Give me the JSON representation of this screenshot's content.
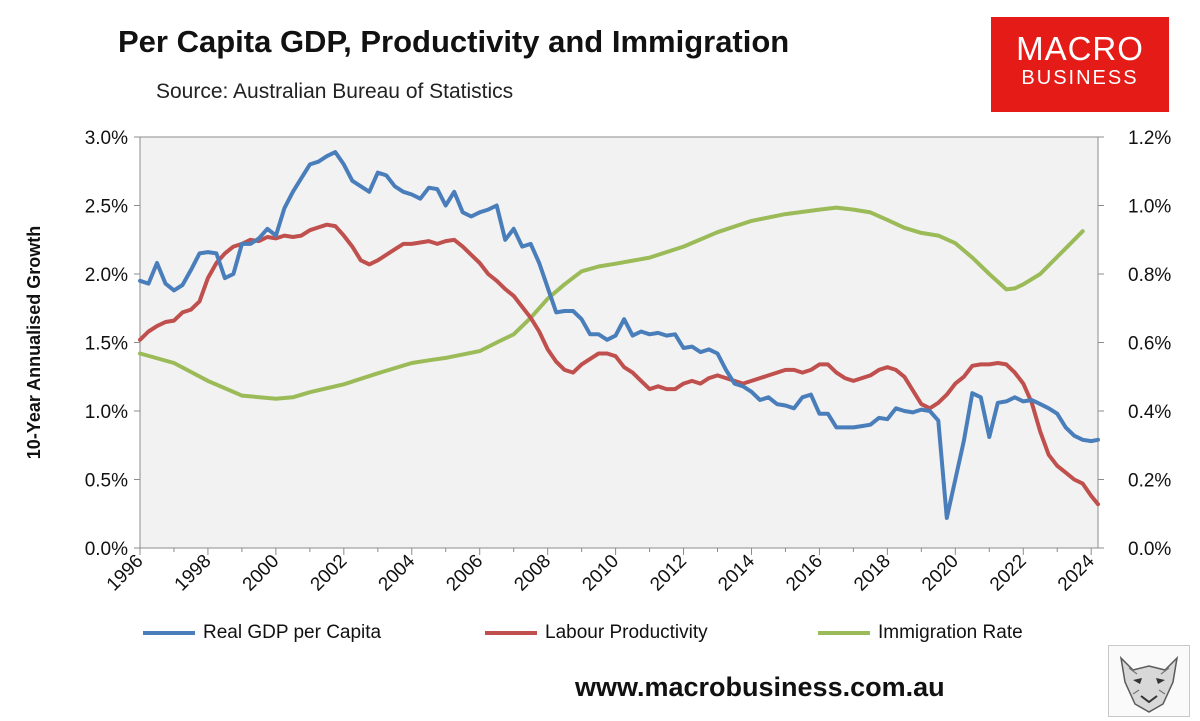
{
  "header": {
    "title": "Per Capita GDP, Productivity and Immigration",
    "subtitle": "Source: Australian Bureau of Statistics"
  },
  "brand": {
    "line1": "MACRO",
    "line2": "BUSINESS",
    "color": "#e41b17"
  },
  "footer": {
    "website": "www.macrobusiness.com.au",
    "logo_icon": "wolf-icon"
  },
  "chart_data": {
    "type": "line",
    "title": "Per Capita GDP, Productivity and Immigration",
    "subtitle": "Source: Australian Bureau of Statistics",
    "xlabel": "",
    "ylabel": "10-Year Annualised Growth",
    "xlim": [
      1996,
      2024.2
    ],
    "ylim": [
      0,
      3.0
    ],
    "y2lim": [
      0,
      1.2
    ],
    "y_ticks": [
      "0.0%",
      "0.5%",
      "1.0%",
      "1.5%",
      "2.0%",
      "2.5%",
      "3.0%"
    ],
    "y2_ticks": [
      "0.0%",
      "0.2%",
      "0.4%",
      "0.6%",
      "0.8%",
      "1.0%",
      "1.2%"
    ],
    "x_ticks": [
      "1996",
      "1998",
      "2000",
      "2002",
      "2004",
      "2006",
      "2008",
      "2010",
      "2012",
      "2014",
      "2016",
      "2018",
      "2020",
      "2022",
      "2024"
    ],
    "grid": false,
    "legend_position": "bottom",
    "series": [
      {
        "name": "Real GDP per Capita",
        "axis": "left",
        "color": "#4a7ebb",
        "points": [
          [
            1996.0,
            1.95
          ],
          [
            1996.25,
            1.93
          ],
          [
            1996.5,
            2.08
          ],
          [
            1996.75,
            1.93
          ],
          [
            1997.0,
            1.88
          ],
          [
            1997.25,
            1.92
          ],
          [
            1997.5,
            2.03
          ],
          [
            1997.75,
            2.15
          ],
          [
            1998.0,
            2.16
          ],
          [
            1998.25,
            2.15
          ],
          [
            1998.5,
            1.97
          ],
          [
            1998.75,
            2.0
          ],
          [
            1999.0,
            2.22
          ],
          [
            1999.25,
            2.22
          ],
          [
            1999.5,
            2.26
          ],
          [
            1999.75,
            2.33
          ],
          [
            2000.0,
            2.28
          ],
          [
            2000.25,
            2.48
          ],
          [
            2000.5,
            2.6
          ],
          [
            2000.75,
            2.7
          ],
          [
            2001.0,
            2.8
          ],
          [
            2001.25,
            2.82
          ],
          [
            2001.5,
            2.86
          ],
          [
            2001.75,
            2.89
          ],
          [
            2002.0,
            2.8
          ],
          [
            2002.25,
            2.68
          ],
          [
            2002.5,
            2.64
          ],
          [
            2002.75,
            2.6
          ],
          [
            2003.0,
            2.74
          ],
          [
            2003.25,
            2.72
          ],
          [
            2003.5,
            2.64
          ],
          [
            2003.75,
            2.6
          ],
          [
            2004.0,
            2.58
          ],
          [
            2004.25,
            2.55
          ],
          [
            2004.5,
            2.63
          ],
          [
            2004.75,
            2.62
          ],
          [
            2005.0,
            2.5
          ],
          [
            2005.25,
            2.6
          ],
          [
            2005.5,
            2.45
          ],
          [
            2005.75,
            2.42
          ],
          [
            2006.0,
            2.45
          ],
          [
            2006.25,
            2.47
          ],
          [
            2006.5,
            2.5
          ],
          [
            2006.75,
            2.25
          ],
          [
            2007.0,
            2.33
          ],
          [
            2007.25,
            2.2
          ],
          [
            2007.5,
            2.22
          ],
          [
            2007.75,
            2.08
          ],
          [
            2008.0,
            1.9
          ],
          [
            2008.25,
            1.72
          ],
          [
            2008.5,
            1.73
          ],
          [
            2008.75,
            1.73
          ],
          [
            2009.0,
            1.67
          ],
          [
            2009.25,
            1.56
          ],
          [
            2009.5,
            1.56
          ],
          [
            2009.75,
            1.52
          ],
          [
            2010.0,
            1.55
          ],
          [
            2010.25,
            1.67
          ],
          [
            2010.5,
            1.55
          ],
          [
            2010.75,
            1.58
          ],
          [
            2011.0,
            1.56
          ],
          [
            2011.25,
            1.57
          ],
          [
            2011.5,
            1.55
          ],
          [
            2011.75,
            1.56
          ],
          [
            2012.0,
            1.46
          ],
          [
            2012.25,
            1.47
          ],
          [
            2012.5,
            1.43
          ],
          [
            2012.75,
            1.45
          ],
          [
            2013.0,
            1.42
          ],
          [
            2013.25,
            1.3
          ],
          [
            2013.5,
            1.2
          ],
          [
            2013.75,
            1.18
          ],
          [
            2014.0,
            1.14
          ],
          [
            2014.25,
            1.08
          ],
          [
            2014.5,
            1.1
          ],
          [
            2014.75,
            1.05
          ],
          [
            2015.0,
            1.04
          ],
          [
            2015.25,
            1.02
          ],
          [
            2015.5,
            1.1
          ],
          [
            2015.75,
            1.12
          ],
          [
            2016.0,
            0.98
          ],
          [
            2016.25,
            0.98
          ],
          [
            2016.5,
            0.88
          ],
          [
            2016.75,
            0.88
          ],
          [
            2017.0,
            0.88
          ],
          [
            2017.25,
            0.89
          ],
          [
            2017.5,
            0.9
          ],
          [
            2017.75,
            0.95
          ],
          [
            2018.0,
            0.94
          ],
          [
            2018.25,
            1.02
          ],
          [
            2018.5,
            1.0
          ],
          [
            2018.75,
            0.99
          ],
          [
            2019.0,
            1.01
          ],
          [
            2019.25,
            1.0
          ],
          [
            2019.5,
            0.93
          ],
          [
            2019.75,
            0.22
          ],
          [
            2020.0,
            0.5
          ],
          [
            2020.25,
            0.78
          ],
          [
            2020.5,
            1.13
          ],
          [
            2020.75,
            1.1
          ],
          [
            2021.0,
            0.81
          ],
          [
            2021.25,
            1.06
          ],
          [
            2021.5,
            1.07
          ],
          [
            2021.75,
            1.1
          ],
          [
            2022.0,
            1.07
          ],
          [
            2022.25,
            1.08
          ],
          [
            2022.5,
            1.05
          ],
          [
            2022.75,
            1.02
          ],
          [
            2023.0,
            0.98
          ],
          [
            2023.25,
            0.88
          ],
          [
            2023.5,
            0.82
          ],
          [
            2023.75,
            0.79
          ],
          [
            2024.0,
            0.78
          ],
          [
            2024.2,
            0.79
          ]
        ]
      },
      {
        "name": "Labour Productivity",
        "axis": "left",
        "color": "#c0504d",
        "points": [
          [
            1996.0,
            1.52
          ],
          [
            1996.25,
            1.58
          ],
          [
            1996.5,
            1.62
          ],
          [
            1996.75,
            1.65
          ],
          [
            1997.0,
            1.66
          ],
          [
            1997.25,
            1.72
          ],
          [
            1997.5,
            1.74
          ],
          [
            1997.75,
            1.8
          ],
          [
            1998.0,
            1.97
          ],
          [
            1998.25,
            2.08
          ],
          [
            1998.5,
            2.15
          ],
          [
            1998.75,
            2.2
          ],
          [
            1999.0,
            2.22
          ],
          [
            1999.25,
            2.25
          ],
          [
            1999.5,
            2.24
          ],
          [
            1999.75,
            2.27
          ],
          [
            2000.0,
            2.26
          ],
          [
            2000.25,
            2.28
          ],
          [
            2000.5,
            2.27
          ],
          [
            2000.75,
            2.28
          ],
          [
            2001.0,
            2.32
          ],
          [
            2001.25,
            2.34
          ],
          [
            2001.5,
            2.36
          ],
          [
            2001.75,
            2.35
          ],
          [
            2002.0,
            2.28
          ],
          [
            2002.25,
            2.2
          ],
          [
            2002.5,
            2.1
          ],
          [
            2002.75,
            2.07
          ],
          [
            2003.0,
            2.1
          ],
          [
            2003.25,
            2.14
          ],
          [
            2003.5,
            2.18
          ],
          [
            2003.75,
            2.22
          ],
          [
            2004.0,
            2.22
          ],
          [
            2004.25,
            2.23
          ],
          [
            2004.5,
            2.24
          ],
          [
            2004.75,
            2.22
          ],
          [
            2005.0,
            2.24
          ],
          [
            2005.25,
            2.25
          ],
          [
            2005.5,
            2.2
          ],
          [
            2005.75,
            2.14
          ],
          [
            2006.0,
            2.08
          ],
          [
            2006.25,
            2.0
          ],
          [
            2006.5,
            1.95
          ],
          [
            2006.75,
            1.89
          ],
          [
            2007.0,
            1.84
          ],
          [
            2007.25,
            1.76
          ],
          [
            2007.5,
            1.68
          ],
          [
            2007.75,
            1.58
          ],
          [
            2008.0,
            1.45
          ],
          [
            2008.25,
            1.36
          ],
          [
            2008.5,
            1.3
          ],
          [
            2008.75,
            1.28
          ],
          [
            2009.0,
            1.34
          ],
          [
            2009.25,
            1.38
          ],
          [
            2009.5,
            1.42
          ],
          [
            2009.75,
            1.42
          ],
          [
            2010.0,
            1.4
          ],
          [
            2010.25,
            1.32
          ],
          [
            2010.5,
            1.28
          ],
          [
            2010.75,
            1.22
          ],
          [
            2011.0,
            1.16
          ],
          [
            2011.25,
            1.18
          ],
          [
            2011.5,
            1.16
          ],
          [
            2011.75,
            1.16
          ],
          [
            2012.0,
            1.2
          ],
          [
            2012.25,
            1.22
          ],
          [
            2012.5,
            1.2
          ],
          [
            2012.75,
            1.24
          ],
          [
            2013.0,
            1.26
          ],
          [
            2013.25,
            1.24
          ],
          [
            2013.5,
            1.22
          ],
          [
            2013.75,
            1.2
          ],
          [
            2014.0,
            1.22
          ],
          [
            2014.25,
            1.24
          ],
          [
            2014.5,
            1.26
          ],
          [
            2014.75,
            1.28
          ],
          [
            2015.0,
            1.3
          ],
          [
            2015.25,
            1.3
          ],
          [
            2015.5,
            1.28
          ],
          [
            2015.75,
            1.3
          ],
          [
            2016.0,
            1.34
          ],
          [
            2016.25,
            1.34
          ],
          [
            2016.5,
            1.28
          ],
          [
            2016.75,
            1.24
          ],
          [
            2017.0,
            1.22
          ],
          [
            2017.25,
            1.24
          ],
          [
            2017.5,
            1.26
          ],
          [
            2017.75,
            1.3
          ],
          [
            2018.0,
            1.32
          ],
          [
            2018.25,
            1.3
          ],
          [
            2018.5,
            1.25
          ],
          [
            2018.75,
            1.15
          ],
          [
            2019.0,
            1.05
          ],
          [
            2019.25,
            1.02
          ],
          [
            2019.5,
            1.06
          ],
          [
            2019.75,
            1.12
          ],
          [
            2020.0,
            1.2
          ],
          [
            2020.25,
            1.25
          ],
          [
            2020.5,
            1.33
          ],
          [
            2020.75,
            1.34
          ],
          [
            2021.0,
            1.34
          ],
          [
            2021.25,
            1.35
          ],
          [
            2021.5,
            1.34
          ],
          [
            2021.75,
            1.28
          ],
          [
            2022.0,
            1.2
          ],
          [
            2022.25,
            1.06
          ],
          [
            2022.5,
            0.85
          ],
          [
            2022.75,
            0.68
          ],
          [
            2023.0,
            0.6
          ],
          [
            2023.25,
            0.55
          ],
          [
            2023.5,
            0.5
          ],
          [
            2023.75,
            0.47
          ],
          [
            2024.0,
            0.38
          ],
          [
            2024.2,
            0.32
          ]
        ]
      },
      {
        "name": "Immigration Rate",
        "axis": "right",
        "color": "#9bbb59",
        "points": [
          [
            1996.0,
            0.568
          ],
          [
            1997.0,
            0.54
          ],
          [
            1998.0,
            0.488
          ],
          [
            1999.0,
            0.445
          ],
          [
            2000.0,
            0.436
          ],
          [
            2000.5,
            0.44
          ],
          [
            2001.0,
            0.455
          ],
          [
            2002.0,
            0.478
          ],
          [
            2003.0,
            0.51
          ],
          [
            2004.0,
            0.54
          ],
          [
            2004.5,
            0.548
          ],
          [
            2005.0,
            0.555
          ],
          [
            2006.0,
            0.575
          ],
          [
            2006.5,
            0.6
          ],
          [
            2007.0,
            0.624
          ],
          [
            2007.5,
            0.672
          ],
          [
            2008.0,
            0.728
          ],
          [
            2008.5,
            0.77
          ],
          [
            2009.0,
            0.808
          ],
          [
            2009.5,
            0.822
          ],
          [
            2010.0,
            0.83
          ],
          [
            2011.0,
            0.848
          ],
          [
            2012.0,
            0.88
          ],
          [
            2013.0,
            0.922
          ],
          [
            2014.0,
            0.955
          ],
          [
            2015.0,
            0.975
          ],
          [
            2016.0,
            0.988
          ],
          [
            2016.5,
            0.994
          ],
          [
            2017.0,
            0.988
          ],
          [
            2017.5,
            0.98
          ],
          [
            2018.0,
            0.958
          ],
          [
            2018.5,
            0.935
          ],
          [
            2019.0,
            0.92
          ],
          [
            2019.5,
            0.912
          ],
          [
            2020.0,
            0.89
          ],
          [
            2020.5,
            0.848
          ],
          [
            2021.0,
            0.8
          ],
          [
            2021.5,
            0.755
          ],
          [
            2021.75,
            0.758
          ],
          [
            2022.0,
            0.77
          ],
          [
            2022.5,
            0.8
          ],
          [
            2023.0,
            0.85
          ],
          [
            2023.5,
            0.9
          ],
          [
            2023.75,
            0.925
          ]
        ]
      }
    ]
  }
}
